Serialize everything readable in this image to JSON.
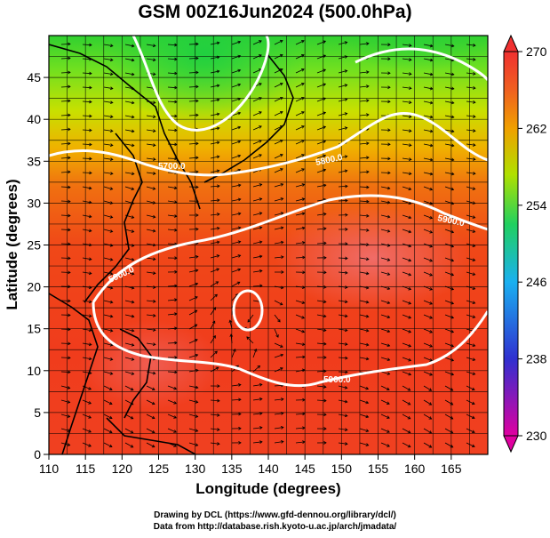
{
  "title": "GSM 00Z16Jun2024 (500.0hPa)",
  "axes": {
    "x_label": "Longitude (degrees)",
    "y_label": "Latitude  (degrees)",
    "x_ticks": [
      "110",
      "115",
      "120",
      "125",
      "130",
      "135",
      "140",
      "145",
      "150",
      "155",
      "160",
      "165"
    ],
    "y_ticks": [
      "0",
      "5",
      "10",
      "15",
      "20",
      "25",
      "30",
      "35",
      "40",
      "45"
    ],
    "x_range": [
      110,
      170
    ],
    "y_range": [
      0,
      50
    ]
  },
  "colorbar": {
    "tick_labels": [
      "270",
      "262",
      "254",
      "246",
      "238",
      "230"
    ],
    "range": [
      230,
      270
    ],
    "colors": [
      "#e0007a",
      "#3030d0",
      "#1ab0f0",
      "#20d060",
      "#b0e000",
      "#f0a000",
      "#f05010",
      "#e03030"
    ]
  },
  "contours": [
    {
      "label": "5700.0",
      "level": 5700
    },
    {
      "label": "5800.0",
      "level": 5800
    },
    {
      "label": "5900.0",
      "level": 5900
    },
    {
      "label": "5900.0",
      "level": 5900
    },
    {
      "label": "5900.0",
      "level": 5900
    }
  ],
  "credits": {
    "line1": "Drawing by DCL (https://www.gfd-dennou.org/library/dcl/)",
    "line2": "Data from http://database.rish.kyoto-u.ac.jp/arch/jmadata/"
  }
}
